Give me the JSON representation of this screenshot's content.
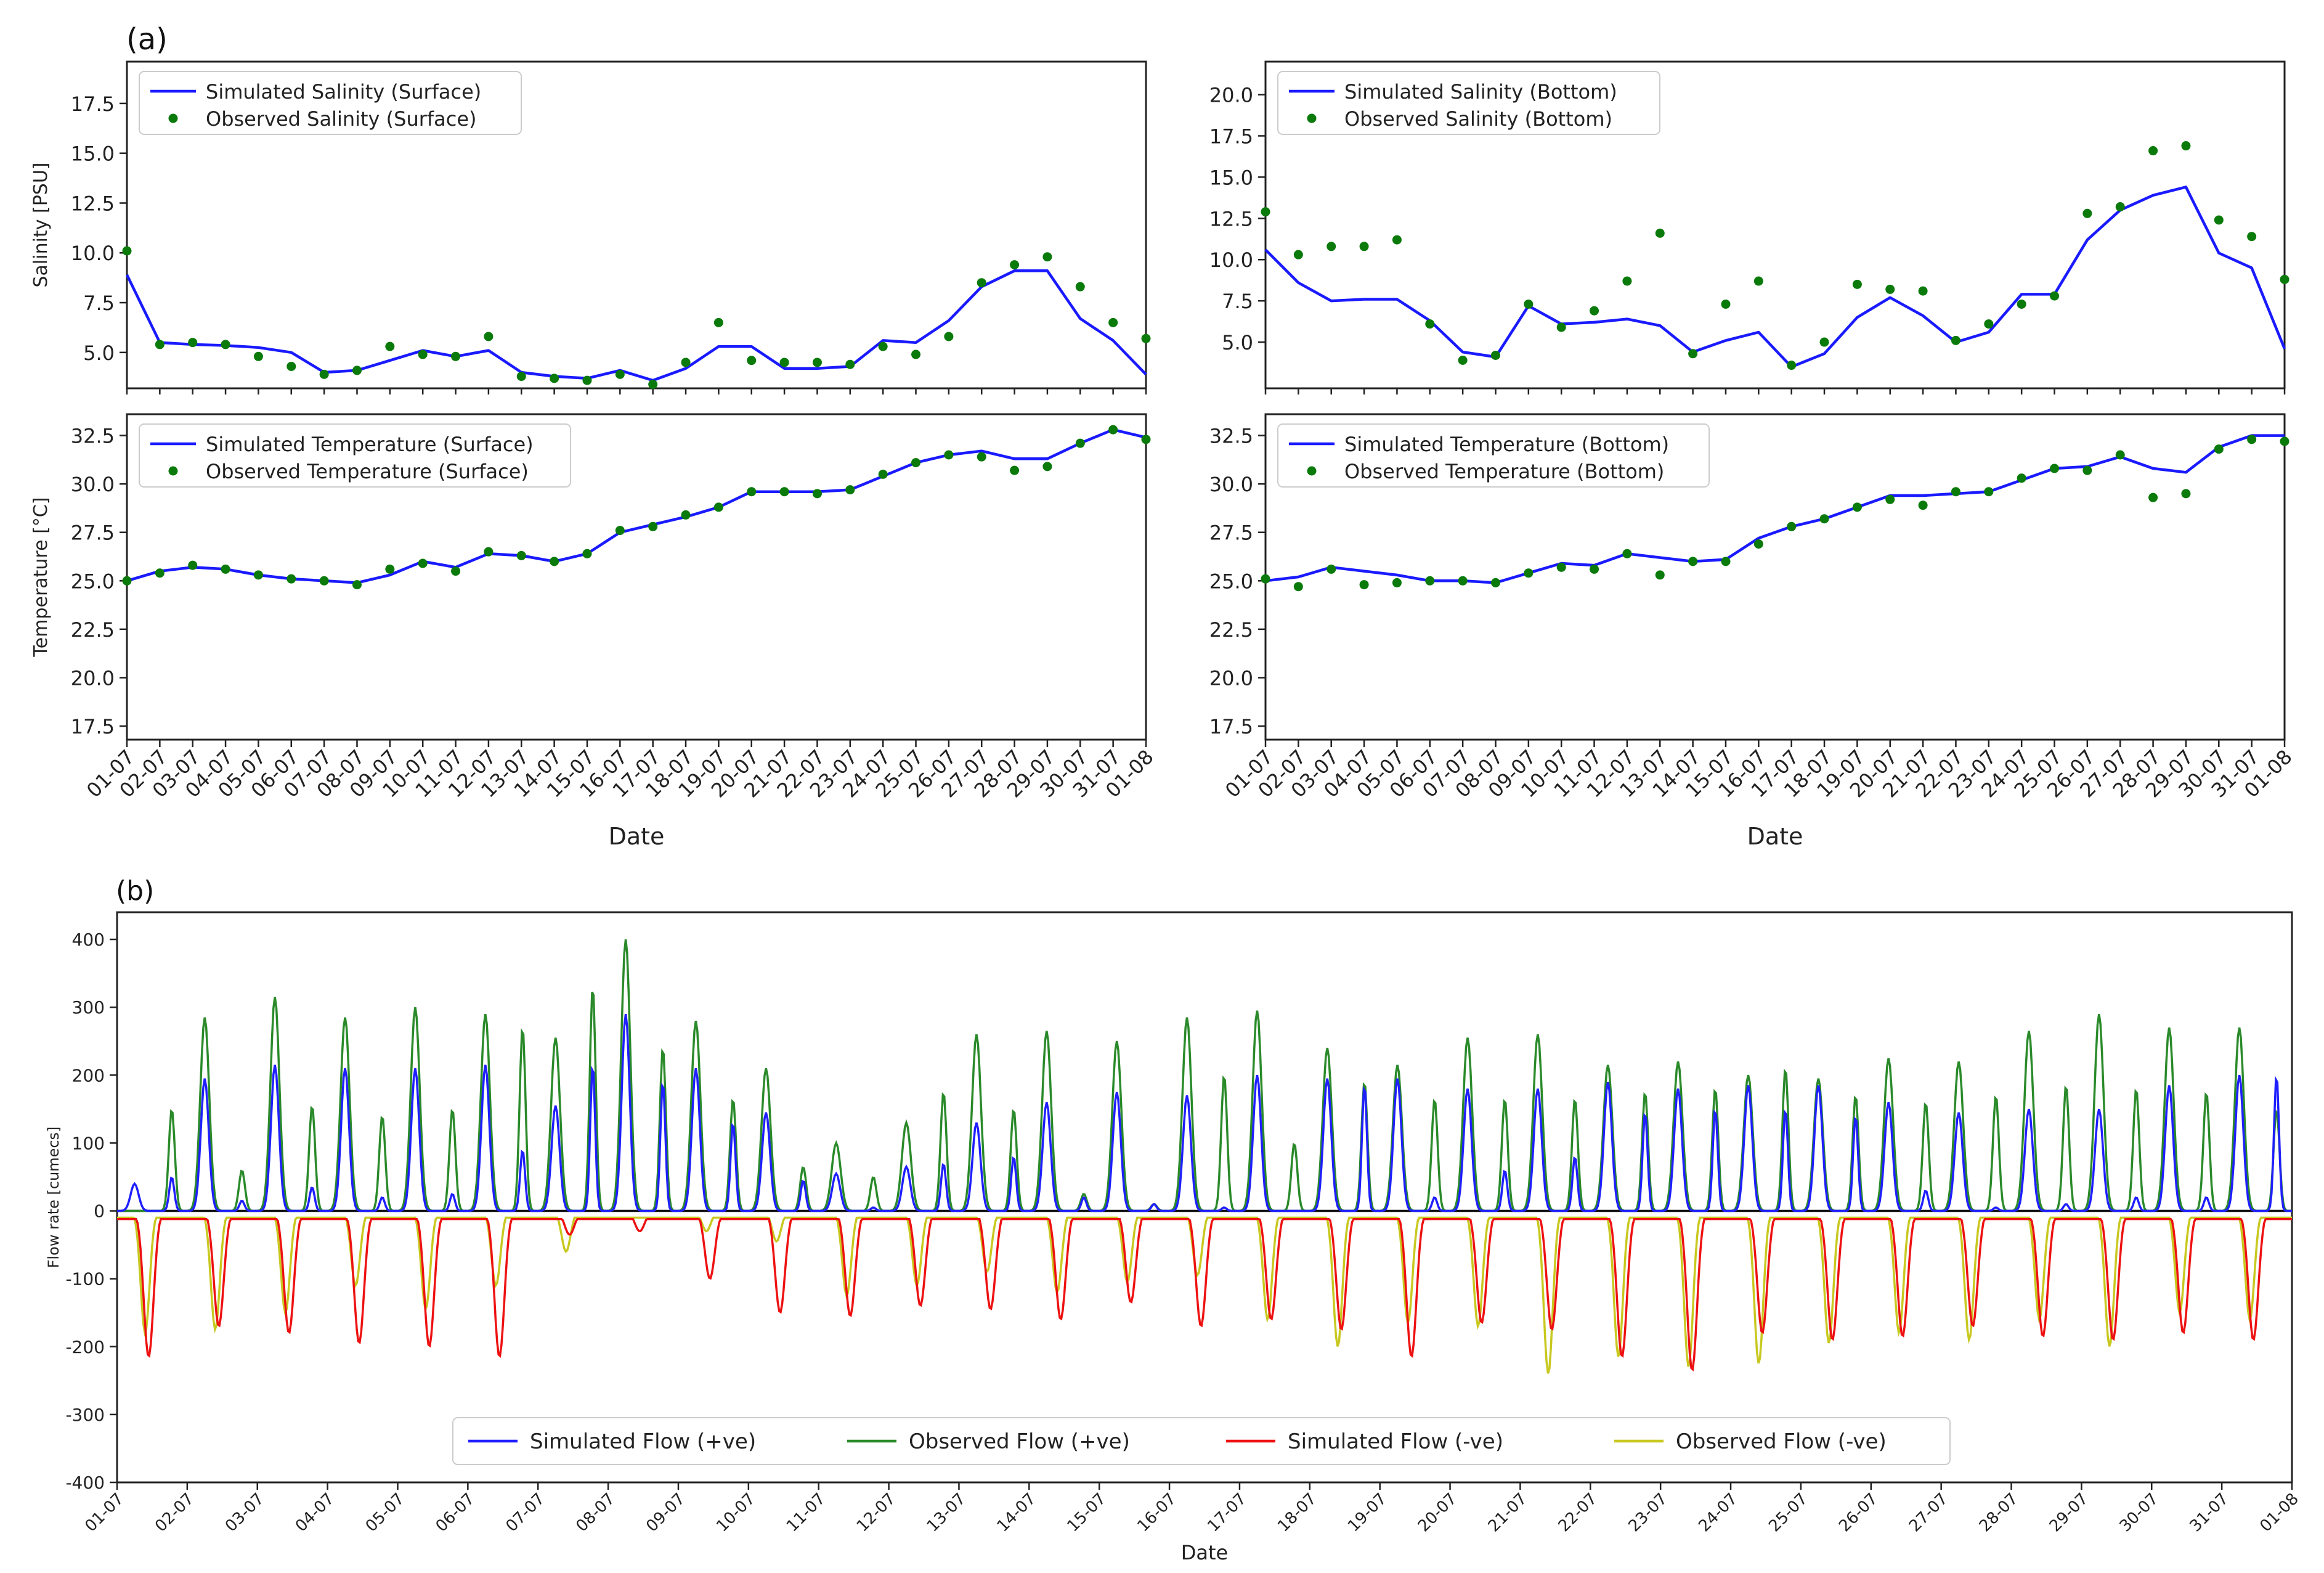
{
  "figure": {
    "label_a": "(a)",
    "label_b": "(b)"
  },
  "colors": {
    "sim_line": "#1a1aff",
    "obs_point": "#0a7a0a",
    "flow_sim_pos": "#1f1fff",
    "flow_obs_pos": "#2a8a2a",
    "flow_sim_neg": "#ee1111",
    "flow_obs_neg": "#c8c820"
  },
  "chart_data": [
    {
      "id": "salinity-surface",
      "type": "line",
      "x": [
        "01-07",
        "02-07",
        "03-07",
        "04-07",
        "05-07",
        "06-07",
        "07-07",
        "08-07",
        "09-07",
        "10-07",
        "11-07",
        "12-07",
        "13-07",
        "14-07",
        "15-07",
        "16-07",
        "17-07",
        "18-07",
        "19-07",
        "20-07",
        "21-07",
        "22-07",
        "23-07",
        "24-07",
        "25-07",
        "26-07",
        "27-07",
        "28-07",
        "29-07",
        "30-07",
        "31-07",
        "01-08"
      ],
      "xlabel": "Date",
      "ylabel": "Salinity [PSU]",
      "ylim": [
        3.2,
        19.6
      ],
      "yticks": [
        5.0,
        7.5,
        10.0,
        12.5,
        15.0,
        17.5
      ],
      "series": [
        {
          "name": "Simulated Salinity (Surface)",
          "kind": "line",
          "values": [
            8.9,
            5.5,
            5.4,
            5.35,
            5.25,
            5.0,
            4.0,
            4.1,
            4.6,
            5.1,
            4.8,
            5.1,
            4.0,
            3.8,
            3.7,
            4.1,
            3.6,
            4.2,
            5.3,
            5.3,
            4.2,
            4.2,
            4.3,
            5.6,
            5.5,
            6.6,
            8.3,
            9.1,
            9.1,
            6.7,
            5.6,
            3.9
          ]
        },
        {
          "name": "Observed Salinity (Surface)",
          "kind": "points",
          "values": [
            10.1,
            5.4,
            5.5,
            5.4,
            4.8,
            4.3,
            3.9,
            4.1,
            5.3,
            4.9,
            4.8,
            5.8,
            3.8,
            3.7,
            3.6,
            3.9,
            3.4,
            4.5,
            6.5,
            4.6,
            4.5,
            4.5,
            4.4,
            5.3,
            4.9,
            5.8,
            8.5,
            9.4,
            9.8,
            8.3,
            6.5,
            5.7
          ]
        }
      ]
    },
    {
      "id": "salinity-bottom",
      "type": "line",
      "x": [
        "01-07",
        "02-07",
        "03-07",
        "04-07",
        "05-07",
        "06-07",
        "07-07",
        "08-07",
        "09-07",
        "10-07",
        "11-07",
        "12-07",
        "13-07",
        "14-07",
        "15-07",
        "16-07",
        "17-07",
        "18-07",
        "19-07",
        "20-07",
        "21-07",
        "22-07",
        "23-07",
        "24-07",
        "25-07",
        "26-07",
        "27-07",
        "28-07",
        "29-07",
        "30-07",
        "31-07",
        "01-08"
      ],
      "xlabel": "Date",
      "ylabel": "",
      "ylim": [
        2.2,
        22.0
      ],
      "yticks": [
        5.0,
        7.5,
        10.0,
        12.5,
        15.0,
        17.5,
        20.0
      ],
      "series": [
        {
          "name": "Simulated Salinity (Bottom)",
          "kind": "line",
          "values": [
            10.6,
            8.6,
            7.5,
            7.6,
            7.6,
            6.3,
            4.4,
            4.1,
            7.2,
            6.1,
            6.2,
            6.4,
            6.0,
            4.4,
            5.1,
            5.6,
            3.5,
            4.3,
            6.5,
            7.7,
            6.6,
            5.0,
            5.6,
            7.9,
            7.9,
            11.2,
            13.0,
            13.9,
            14.4,
            10.4,
            9.5,
            4.6
          ]
        },
        {
          "name": "Observed Salinity (Bottom)",
          "kind": "points",
          "values": [
            12.9,
            10.3,
            10.8,
            10.8,
            11.2,
            6.1,
            3.9,
            4.2,
            7.3,
            5.9,
            6.9,
            8.7,
            11.6,
            4.3,
            7.3,
            8.7,
            3.6,
            5.0,
            8.5,
            8.2,
            8.1,
            5.1,
            6.1,
            7.3,
            7.8,
            12.8,
            13.2,
            16.6,
            16.9,
            12.4,
            11.4,
            8.8
          ]
        }
      ]
    },
    {
      "id": "temperature-surface",
      "type": "line",
      "x": [
        "01-07",
        "02-07",
        "03-07",
        "04-07",
        "05-07",
        "06-07",
        "07-07",
        "08-07",
        "09-07",
        "10-07",
        "11-07",
        "12-07",
        "13-07",
        "14-07",
        "15-07",
        "16-07",
        "17-07",
        "18-07",
        "19-07",
        "20-07",
        "21-07",
        "22-07",
        "23-07",
        "24-07",
        "25-07",
        "26-07",
        "27-07",
        "28-07",
        "29-07",
        "30-07",
        "31-07",
        "01-08"
      ],
      "xlabel": "Date",
      "ylabel": "Temperature [°C]",
      "ylim": [
        16.8,
        33.6
      ],
      "yticks": [
        17.5,
        20.0,
        22.5,
        25.0,
        27.5,
        30.0,
        32.5
      ],
      "series": [
        {
          "name": "Simulated Temperature (Surface)",
          "kind": "line",
          "values": [
            25.0,
            25.5,
            25.7,
            25.6,
            25.3,
            25.1,
            25.0,
            24.9,
            25.3,
            26.0,
            25.7,
            26.4,
            26.3,
            26.0,
            26.4,
            27.5,
            27.9,
            28.3,
            28.8,
            29.6,
            29.6,
            29.6,
            29.7,
            30.4,
            31.1,
            31.5,
            31.7,
            31.3,
            31.3,
            32.1,
            32.8,
            32.4
          ]
        },
        {
          "name": "Observed Temperature (Surface)",
          "kind": "points",
          "values": [
            25.0,
            25.4,
            25.8,
            25.6,
            25.3,
            25.1,
            25.0,
            24.8,
            25.6,
            25.9,
            25.5,
            26.5,
            26.3,
            26.0,
            26.4,
            27.6,
            27.8,
            28.4,
            28.8,
            29.6,
            29.6,
            29.5,
            29.7,
            30.5,
            31.1,
            31.5,
            31.4,
            30.7,
            30.9,
            32.1,
            32.8,
            32.3
          ]
        }
      ]
    },
    {
      "id": "temperature-bottom",
      "type": "line",
      "x": [
        "01-07",
        "02-07",
        "03-07",
        "04-07",
        "05-07",
        "06-07",
        "07-07",
        "08-07",
        "09-07",
        "10-07",
        "11-07",
        "12-07",
        "13-07",
        "14-07",
        "15-07",
        "16-07",
        "17-07",
        "18-07",
        "19-07",
        "20-07",
        "21-07",
        "22-07",
        "23-07",
        "24-07",
        "25-07",
        "26-07",
        "27-07",
        "28-07",
        "29-07",
        "30-07",
        "31-07",
        "01-08"
      ],
      "xlabel": "Date",
      "ylabel": "",
      "ylim": [
        16.8,
        33.6
      ],
      "yticks": [
        17.5,
        20.0,
        22.5,
        25.0,
        27.5,
        30.0,
        32.5
      ],
      "series": [
        {
          "name": "Simulated Temperature (Bottom)",
          "kind": "line",
          "values": [
            25.0,
            25.2,
            25.7,
            25.5,
            25.3,
            25.0,
            25.0,
            24.9,
            25.4,
            25.9,
            25.8,
            26.4,
            26.2,
            26.0,
            26.1,
            27.2,
            27.8,
            28.2,
            28.8,
            29.4,
            29.4,
            29.5,
            29.6,
            30.2,
            30.8,
            30.9,
            31.4,
            30.8,
            30.6,
            31.9,
            32.5,
            32.5
          ]
        },
        {
          "name": "Observed Temperature (Bottom)",
          "kind": "points",
          "values": [
            25.1,
            24.7,
            25.6,
            24.8,
            24.9,
            25.0,
            25.0,
            24.9,
            25.4,
            25.7,
            25.6,
            26.4,
            25.3,
            26.0,
            26.0,
            26.9,
            27.8,
            28.2,
            28.8,
            29.2,
            28.9,
            29.6,
            29.6,
            30.3,
            30.8,
            30.7,
            31.5,
            29.3,
            29.5,
            31.8,
            32.3,
            32.2
          ]
        }
      ]
    },
    {
      "id": "flow-rate",
      "type": "line",
      "x": [
        "01-07",
        "02-07",
        "03-07",
        "04-07",
        "05-07",
        "06-07",
        "07-07",
        "08-07",
        "09-07",
        "10-07",
        "11-07",
        "12-07",
        "13-07",
        "14-07",
        "15-07",
        "16-07",
        "17-07",
        "18-07",
        "19-07",
        "20-07",
        "21-07",
        "22-07",
        "23-07",
        "24-07",
        "25-07",
        "26-07",
        "27-07",
        "28-07",
        "29-07",
        "30-07",
        "31-07",
        "01-08"
      ],
      "xlabel": "Date",
      "ylabel": "Flow rate [cumecs]",
      "ylim": [
        -400,
        440
      ],
      "yticks": [
        -400,
        -300,
        -200,
        -100,
        0,
        100,
        200,
        300,
        400
      ],
      "legend": "bottom-center",
      "daily_peaks": {
        "obs_pos_major": [
          0,
          285,
          315,
          285,
          300,
          290,
          255,
          400,
          280,
          210,
          100,
          130,
          260,
          265,
          250,
          285,
          295,
          240,
          215,
          255,
          260,
          215,
          220,
          200,
          195,
          225,
          220,
          265,
          290,
          270,
          270,
          225
        ],
        "obs_pos_minor": [
          40,
          150,
          60,
          155,
          140,
          150,
          270,
          330,
          240,
          165,
          65,
          50,
          175,
          150,
          25,
          10,
          200,
          100,
          190,
          165,
          165,
          165,
          175,
          180,
          210,
          170,
          160,
          170,
          185,
          180,
          175,
          150
        ],
        "sim_pos_major": [
          40,
          195,
          215,
          210,
          210,
          215,
          155,
          290,
          210,
          145,
          55,
          65,
          130,
          160,
          175,
          170,
          200,
          195,
          195,
          180,
          180,
          190,
          180,
          185,
          185,
          160,
          145,
          150,
          150,
          185,
          200,
          205
        ],
        "sim_pos_minor": [
          0,
          50,
          15,
          35,
          20,
          25,
          90,
          215,
          190,
          130,
          45,
          5,
          70,
          80,
          20,
          10,
          5,
          0,
          185,
          20,
          60,
          80,
          145,
          150,
          150,
          140,
          30,
          5,
          10,
          20,
          20,
          200
        ],
        "sim_neg_trough": [
          215,
          170,
          180,
          195,
          200,
          215,
          35,
          30,
          100,
          150,
          155,
          140,
          145,
          160,
          135,
          170,
          160,
          175,
          215,
          165,
          175,
          215,
          235,
          180,
          190,
          185,
          170,
          185,
          190,
          180,
          190,
          55
        ],
        "obs_neg_trough": [
          180,
          175,
          150,
          110,
          145,
          110,
          60,
          0,
          30,
          45,
          125,
          110,
          90,
          120,
          105,
          95,
          160,
          200,
          165,
          170,
          240,
          215,
          230,
          225,
          195,
          180,
          190,
          160,
          200,
          150,
          160,
          50
        ]
      }
    }
  ]
}
